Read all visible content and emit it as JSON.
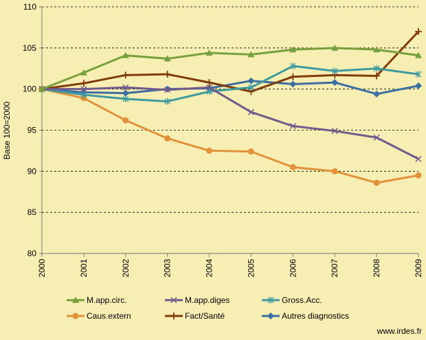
{
  "chart_data": {
    "type": "line",
    "ylabel": "Base 100=2000",
    "ylim": [
      80,
      110
    ],
    "yticks": [
      80,
      85,
      90,
      95,
      100,
      105,
      110
    ],
    "x": [
      "2000",
      "2001",
      "2002",
      "2003",
      "2004",
      "2005",
      "2006",
      "2007",
      "2008",
      "2009"
    ],
    "grid": "horizontal dashed",
    "legend_placement": "bottom",
    "series": [
      {
        "name": "M.app.circ.",
        "color": "#77a03c",
        "marker": "triangle",
        "values": [
          100,
          102.0,
          104.1,
          103.7,
          104.4,
          104.2,
          104.8,
          105.0,
          104.8,
          104.1
        ]
      },
      {
        "name": "M.app.diges",
        "color": "#715a8c",
        "marker": "x",
        "values": [
          100,
          100.0,
          100.2,
          99.9,
          100.2,
          97.2,
          95.5,
          94.9,
          94.1,
          91.5
        ]
      },
      {
        "name": "Gross.Acc.",
        "color": "#3f9aa0",
        "marker": "asterisk",
        "values": [
          100,
          99.3,
          98.8,
          98.5,
          99.7,
          100.2,
          102.8,
          102.2,
          102.5,
          101.8
        ]
      },
      {
        "name": "Caus.extern",
        "color": "#e0913a",
        "marker": "circle",
        "values": [
          100,
          98.9,
          96.2,
          94.0,
          92.5,
          92.4,
          90.5,
          90.0,
          88.6,
          89.5
        ]
      },
      {
        "name": "Fact/Santé",
        "color": "#7f3b08",
        "marker": "plus",
        "values": [
          100,
          100.7,
          101.7,
          101.8,
          100.8,
          99.7,
          101.5,
          101.7,
          101.6,
          107.0
        ]
      },
      {
        "name": "Autres diagnostics",
        "color": "#3a6ea3",
        "marker": "diamond",
        "values": [
          100,
          99.6,
          99.5,
          100.0,
          100.1,
          101.0,
          100.6,
          100.8,
          99.4,
          100.4
        ]
      }
    ]
  },
  "source": "www.irdes.fr"
}
